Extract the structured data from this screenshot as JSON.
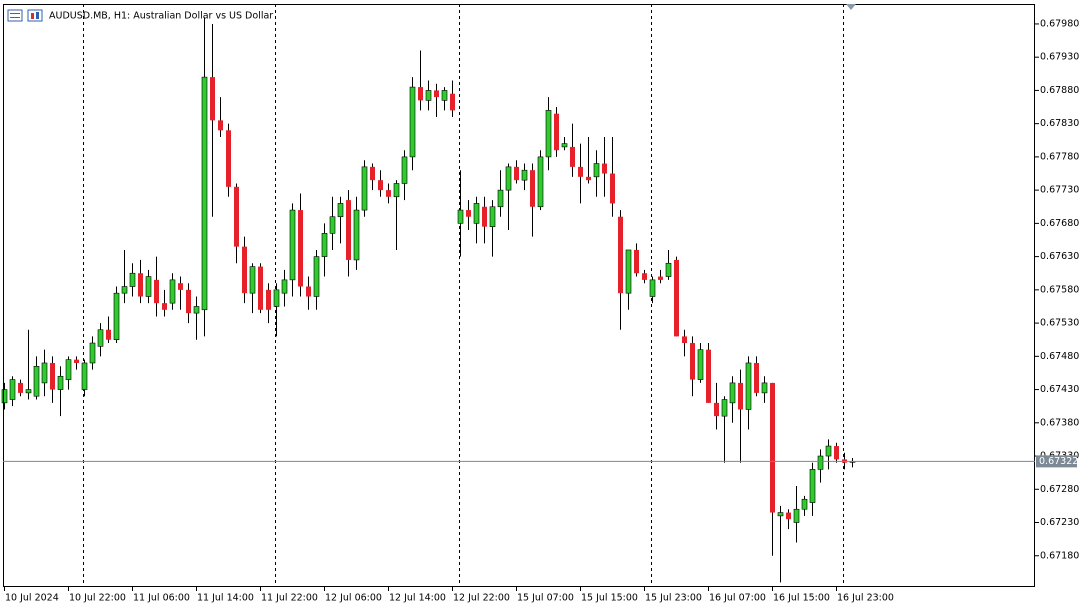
{
  "chart_data": {
    "type": "candlestick",
    "title": "AUDUSD.MB, H1:  Australian Dollar vs US Dollar",
    "categories": [
      "10 Jul 2024",
      null,
      null,
      null,
      null,
      null,
      null,
      null,
      "10 Jul 22:00",
      null,
      null,
      null,
      null,
      null,
      null,
      null,
      "11 Jul 06:00",
      null,
      null,
      null,
      null,
      null,
      null,
      null,
      "11 Jul 14:00",
      null,
      null,
      null,
      null,
      null,
      null,
      null,
      "11 Jul 22:00",
      null,
      null,
      null,
      null,
      null,
      null,
      null,
      "12 Jul 06:00",
      null,
      null,
      null,
      null,
      null,
      null,
      null,
      "12 Jul 14:00",
      null,
      null,
      null,
      null,
      null,
      null,
      null,
      "12 Jul 22:00",
      null,
      null,
      null,
      null,
      null,
      null,
      null,
      "15 Jul 07:00",
      null,
      null,
      null,
      null,
      null,
      null,
      null,
      "15 Jul 15:00",
      null,
      null,
      null,
      null,
      null,
      null,
      null,
      "15 Jul 23:00",
      null,
      null,
      null,
      null,
      null,
      null,
      null,
      "16 Jul 07:00",
      null,
      null,
      null,
      null,
      null,
      null,
      null,
      "16 Jul 15:00",
      null,
      null,
      null,
      null,
      null,
      null,
      null,
      "16 Jul 23:00",
      null,
      null
    ],
    "open": [
      0.6741,
      0.67415,
      0.6744,
      0.67425,
      0.6742,
      0.6744,
      0.6747,
      0.6743,
      0.67445,
      0.67475,
      0.6743,
      0.6747,
      0.67495,
      0.6752,
      0.67505,
      0.67575,
      0.67585,
      0.67605,
      0.6757,
      0.67595,
      0.6756,
      0.6756,
      0.6759,
      0.6758,
      0.67545,
      0.6755,
      0.679,
      0.67835,
      0.6782,
      0.67735,
      0.67645,
      0.67575,
      0.67615,
      0.6758,
      0.67555,
      0.67575,
      0.67595,
      0.677,
      0.67585,
      0.6757,
      0.6763,
      0.67665,
      0.6769,
      0.67715,
      0.67625,
      0.677,
      0.67765,
      0.67745,
      0.6773,
      0.6772,
      0.6774,
      0.6778,
      0.67885,
      0.67865,
      0.6788,
      0.67865,
      0.67875,
      0.6768,
      0.677,
      0.6768,
      0.67705,
      0.67675,
      0.67705,
      0.6773,
      0.67765,
      0.67745,
      0.6776,
      0.67705,
      0.6778,
      0.67845,
      0.67795,
      0.67795,
      0.67765,
      0.6775,
      0.6775,
      0.6777,
      0.67755,
      0.6769,
      0.67575,
      0.6764,
      0.67605,
      0.6757,
      0.676,
      0.676,
      0.67625,
      0.6751,
      0.675,
      0.67445,
      0.6749,
      0.6741,
      0.6739,
      0.6741,
      0.6744,
      0.674,
      0.6747,
      0.67425,
      0.6744,
      0.6724,
      0.67245,
      0.6723,
      0.6725,
      0.6726,
      0.6731,
      0.6733,
      0.67345,
      0.67325,
      0.67322
    ],
    "high": [
      0.6744,
      0.6745,
      0.67445,
      0.6752,
      0.6748,
      0.6749,
      0.6748,
      0.67465,
      0.6748,
      0.6748,
      0.67475,
      0.6751,
      0.6753,
      0.6754,
      0.67585,
      0.6764,
      0.6762,
      0.67625,
      0.6761,
      0.6763,
      0.6758,
      0.67605,
      0.676,
      0.6759,
      0.6757,
      0.6799,
      0.6798,
      0.6787,
      0.6783,
      0.6774,
      0.6766,
      0.6762,
      0.6762,
      0.6759,
      0.6759,
      0.6761,
      0.6771,
      0.67725,
      0.676,
      0.6764,
      0.6768,
      0.6772,
      0.6772,
      0.6773,
      0.6772,
      0.67775,
      0.6777,
      0.6776,
      0.6774,
      0.67745,
      0.6779,
      0.679,
      0.6794,
      0.67895,
      0.6789,
      0.67885,
      0.67895,
      0.6776,
      0.67715,
      0.6772,
      0.6772,
      0.67715,
      0.6776,
      0.6777,
      0.67775,
      0.6777,
      0.6777,
      0.6779,
      0.6787,
      0.67855,
      0.6781,
      0.6783,
      0.678,
      0.6781,
      0.6779,
      0.6781,
      0.6781,
      0.677,
      0.6764,
      0.6765,
      0.6761,
      0.676,
      0.6761,
      0.6764,
      0.6763,
      0.6752,
      0.6751,
      0.675,
      0.675,
      0.6744,
      0.6742,
      0.6745,
      0.6746,
      0.6748,
      0.6748,
      0.6745,
      0.6744,
      0.67255,
      0.6725,
      0.67285,
      0.6727,
      0.6732,
      0.6734,
      0.67355,
      0.6735,
      0.67335,
      0.67327
    ],
    "low": [
      0.674,
      0.67405,
      0.6742,
      0.67415,
      0.67415,
      0.6742,
      0.6741,
      0.6739,
      0.6743,
      0.6746,
      0.6742,
      0.6746,
      0.6748,
      0.675,
      0.675,
      0.6756,
      0.6757,
      0.6756,
      0.6756,
      0.6754,
      0.6754,
      0.6755,
      0.6755,
      0.6753,
      0.67505,
      0.6751,
      0.6769,
      0.6781,
      0.6772,
      0.6762,
      0.6756,
      0.67545,
      0.67545,
      0.6753,
      0.6751,
      0.67555,
      0.6757,
      0.6757,
      0.6755,
      0.6755,
      0.676,
      0.6764,
      0.6765,
      0.676,
      0.6761,
      0.6769,
      0.6773,
      0.6772,
      0.6771,
      0.6764,
      0.67715,
      0.6776,
      0.6785,
      0.6785,
      0.6784,
      0.6785,
      0.6784,
      0.6763,
      0.6767,
      0.6765,
      0.6765,
      0.6763,
      0.6769,
      0.6767,
      0.6774,
      0.6773,
      0.6766,
      0.677,
      0.6776,
      0.6778,
      0.6779,
      0.6775,
      0.6771,
      0.6774,
      0.6772,
      0.6772,
      0.6769,
      0.6752,
      0.6755,
      0.676,
      0.6759,
      0.6756,
      0.6759,
      0.67595,
      0.6751,
      0.6748,
      0.6742,
      0.6744,
      0.6741,
      0.6737,
      0.6732,
      0.6738,
      0.6732,
      0.6737,
      0.6742,
      0.6741,
      0.6718,
      0.6714,
      0.6722,
      0.672,
      0.6724,
      0.6724,
      0.6729,
      0.6731,
      0.6732,
      0.6731,
      0.67313
    ],
    "close": [
      0.6743,
      0.67445,
      0.67425,
      0.6743,
      0.67465,
      0.6747,
      0.6743,
      0.6745,
      0.67475,
      0.6747,
      0.6747,
      0.675,
      0.6752,
      0.67505,
      0.67575,
      0.67585,
      0.67605,
      0.6757,
      0.676,
      0.6756,
      0.6755,
      0.67595,
      0.6758,
      0.67545,
      0.67555,
      0.679,
      0.67835,
      0.6782,
      0.67735,
      0.67645,
      0.67575,
      0.67615,
      0.6755,
      0.6755,
      0.6758,
      0.67595,
      0.677,
      0.67585,
      0.6757,
      0.6763,
      0.67665,
      0.6769,
      0.6771,
      0.67625,
      0.677,
      0.67765,
      0.67745,
      0.6773,
      0.6772,
      0.6774,
      0.6778,
      0.67885,
      0.67865,
      0.6788,
      0.6787,
      0.6788,
      0.6785,
      0.677,
      0.6769,
      0.6771,
      0.67675,
      0.67705,
      0.6773,
      0.67765,
      0.67745,
      0.6776,
      0.67705,
      0.6778,
      0.6785,
      0.6779,
      0.678,
      0.67765,
      0.6775,
      0.67745,
      0.6777,
      0.67755,
      0.6771,
      0.67575,
      0.6764,
      0.67605,
      0.67595,
      0.67595,
      0.67595,
      0.6762,
      0.6751,
      0.675,
      0.67445,
      0.6749,
      0.6741,
      0.6739,
      0.67415,
      0.6744,
      0.674,
      0.6747,
      0.67425,
      0.6744,
      0.67245,
      0.67245,
      0.67235,
      0.6725,
      0.67265,
      0.6731,
      0.6733,
      0.67345,
      0.67325,
      0.6732,
      0.67322
    ],
    "up_color": "#2ecc2e",
    "down_color": "#e8202a",
    "ylim": [
      0.67133,
      0.6801
    ],
    "yticks": [
      {
        "value": 0.6798,
        "label": "0.67980"
      },
      {
        "value": 0.6793,
        "label": "0.67930"
      },
      {
        "value": 0.6788,
        "label": "0.67880"
      },
      {
        "value": 0.6783,
        "label": "0.67830"
      },
      {
        "value": 0.6778,
        "label": "0.67780"
      },
      {
        "value": 0.6773,
        "label": "0.67730"
      },
      {
        "value": 0.6768,
        "label": "0.67680"
      },
      {
        "value": 0.6763,
        "label": "0.67630"
      },
      {
        "value": 0.6758,
        "label": "0.67580"
      },
      {
        "value": 0.6753,
        "label": "0.67530"
      },
      {
        "value": 0.6748,
        "label": "0.67480"
      },
      {
        "value": 0.6743,
        "label": "0.67430"
      },
      {
        "value": 0.6738,
        "label": "0.67380"
      },
      {
        "value": 0.6733,
        "label": "0.67330"
      },
      {
        "value": 0.6728,
        "label": "0.67280"
      },
      {
        "value": 0.6723,
        "label": "0.67230"
      },
      {
        "value": 0.6718,
        "label": "0.67180"
      }
    ],
    "current_price": 0.67322
  }
}
